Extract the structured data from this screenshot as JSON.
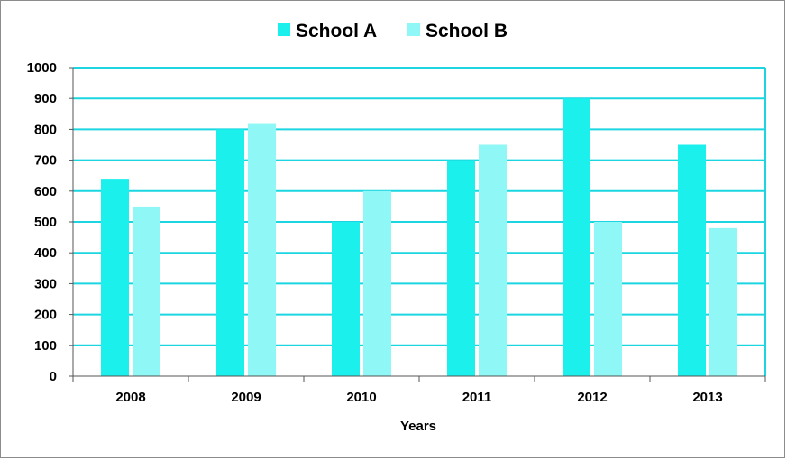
{
  "chart_data": {
    "type": "bar",
    "categories": [
      "2008",
      "2009",
      "2010",
      "2011",
      "2012",
      "2013"
    ],
    "series": [
      {
        "name": "School A",
        "color": "#1bf0ec",
        "values": [
          640,
          800,
          500,
          700,
          900,
          750
        ]
      },
      {
        "name": "School B",
        "color": "#8ff7f5",
        "values": [
          550,
          820,
          600,
          750,
          500,
          480
        ]
      }
    ],
    "xlabel": "Years",
    "ylabel": "",
    "ylim": [
      0,
      1000
    ],
    "yticks": [
      0,
      100,
      200,
      300,
      400,
      500,
      600,
      700,
      800,
      900,
      1000
    ],
    "grid": true,
    "grid_color": "#1bd6e0",
    "legend_position": "top"
  }
}
